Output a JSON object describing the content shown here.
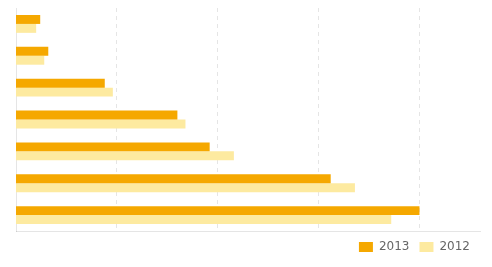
{
  "chart_data": {
    "type": "bar",
    "orientation": "horizontal",
    "categories": [
      null,
      null,
      null,
      null,
      null,
      null,
      null
    ],
    "series": [
      {
        "name": "2013",
        "color": "#F5A800",
        "values": [
          100,
          78,
          48,
          40,
          22,
          8,
          6
        ]
      },
      {
        "name": "2012",
        "color": "#FDEAA0",
        "values": [
          93,
          84,
          54,
          42,
          24,
          7,
          5
        ]
      }
    ],
    "xlim": [
      0,
      115
    ],
    "xticks": [
      25,
      50,
      75,
      100
    ],
    "grid": true,
    "tick_labels": false,
    "legend": "lower right"
  }
}
